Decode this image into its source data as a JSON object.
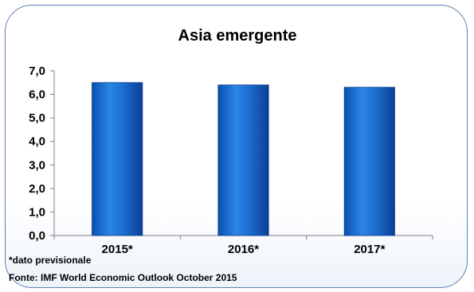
{
  "chart_data": {
    "type": "bar",
    "title": "Asia emergente",
    "categories": [
      "2015*",
      "2016*",
      "2017*"
    ],
    "values": [
      6.5,
      6.4,
      6.3
    ],
    "ylim": [
      0,
      7
    ],
    "yticks": [
      "0,0",
      "1,0",
      "2,0",
      "3,0",
      "4,0",
      "5,0",
      "6,0",
      "7,0"
    ],
    "grid": false,
    "legend": "none",
    "bar_color": "#1f6fd1",
    "bar_edge_color": "#0a3d8f"
  },
  "footnote": "*dato previsionale",
  "source": "Fonte: IMF World Economic Outlook October 2015"
}
